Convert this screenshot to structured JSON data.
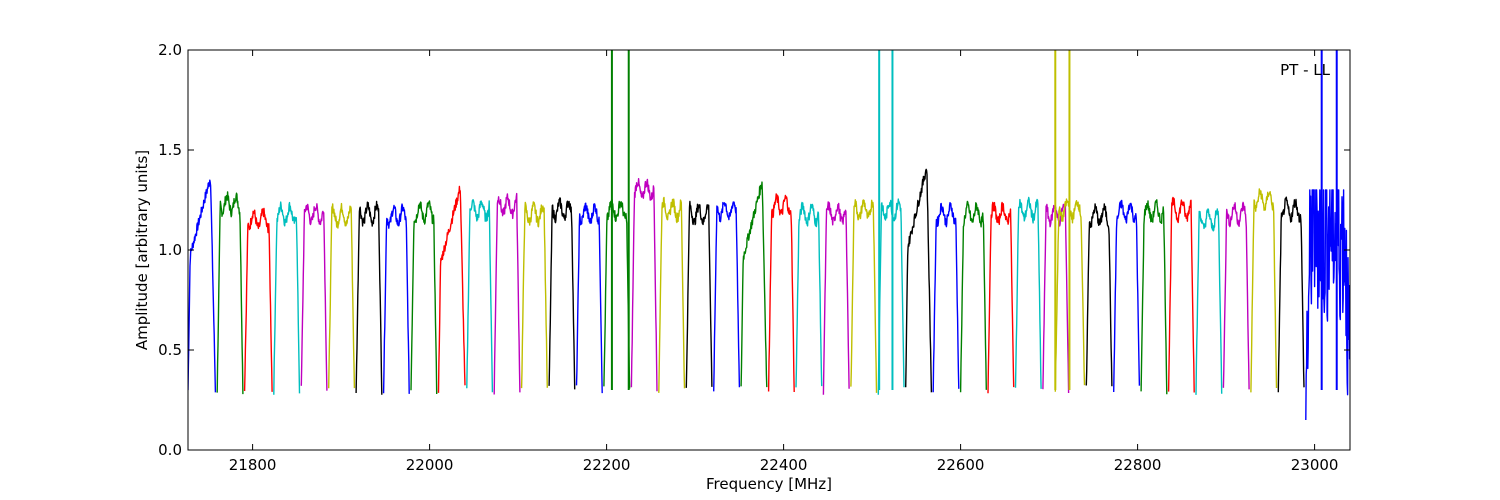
{
  "chart_data": {
    "type": "line",
    "title": "",
    "xlabel": "Frequency [MHz]",
    "ylabel": "Amplitude [arbitrary units]",
    "annotation": "PT - LL",
    "xlim": [
      21727,
      23040
    ],
    "ylim": [
      0.0,
      2.0
    ],
    "x_ticks": [
      21800,
      22000,
      22200,
      22400,
      22600,
      22800,
      23000
    ],
    "y_ticks": [
      0.0,
      0.5,
      1.0,
      1.5,
      2.0
    ],
    "x_tick_labels": [
      "21800",
      "22000",
      "22200",
      "22400",
      "22600",
      "22800",
      "23000"
    ],
    "y_tick_labels": [
      "0.0",
      "0.5",
      "1.0",
      "1.5",
      "2.0"
    ],
    "grid": false,
    "legend": "none",
    "palette": [
      "#0000ff",
      "#008000",
      "#ff0000",
      "#00bfbf",
      "#bf00bf",
      "#bfbf00",
      "#000000"
    ],
    "series": [
      {
        "x_start": 21727,
        "x_end": 21758,
        "level": 1.3,
        "color": "#0000ff",
        "style": "rising"
      },
      {
        "x_start": 21760,
        "x_end": 21789,
        "level": 1.23,
        "color": "#008000"
      },
      {
        "x_start": 21791,
        "x_end": 21822,
        "level": 1.15,
        "color": "#ff0000"
      },
      {
        "x_start": 21824,
        "x_end": 21853,
        "level": 1.18,
        "color": "#00bfbf"
      },
      {
        "x_start": 21855,
        "x_end": 21884,
        "level": 1.18,
        "color": "#bf00bf"
      },
      {
        "x_start": 21886,
        "x_end": 21915,
        "level": 1.17,
        "color": "#bfbf00"
      },
      {
        "x_start": 21917,
        "x_end": 21946,
        "level": 1.18,
        "color": "#000000"
      },
      {
        "x_start": 21948,
        "x_end": 21977,
        "level": 1.17,
        "color": "#0000ff"
      },
      {
        "x_start": 21979,
        "x_end": 22008,
        "level": 1.19,
        "color": "#008000"
      },
      {
        "x_start": 22010,
        "x_end": 22040,
        "level": 1.25,
        "color": "#ff0000",
        "style": "rising"
      },
      {
        "x_start": 22042,
        "x_end": 22071,
        "level": 1.2,
        "color": "#00bfbf"
      },
      {
        "x_start": 22073,
        "x_end": 22102,
        "level": 1.22,
        "color": "#bf00bf"
      },
      {
        "x_start": 22104,
        "x_end": 22133,
        "level": 1.18,
        "color": "#bfbf00"
      },
      {
        "x_start": 22135,
        "x_end": 22164,
        "level": 1.2,
        "color": "#000000"
      },
      {
        "x_start": 22166,
        "x_end": 22195,
        "level": 1.18,
        "color": "#0000ff"
      },
      {
        "x_start": 22197,
        "x_end": 22226,
        "level": 1.2,
        "color": "#008000",
        "spikes": [
          22206,
          22225
        ]
      },
      {
        "x_start": 22228,
        "x_end": 22257,
        "level": 1.3,
        "color": "#bf00bf"
      },
      {
        "x_start": 22259,
        "x_end": 22288,
        "level": 1.2,
        "color": "#bfbf00"
      },
      {
        "x_start": 22290,
        "x_end": 22319,
        "level": 1.18,
        "color": "#000000"
      },
      {
        "x_start": 22321,
        "x_end": 22350,
        "level": 1.2,
        "color": "#0000ff"
      },
      {
        "x_start": 22352,
        "x_end": 22381,
        "level": 1.28,
        "color": "#008000",
        "style": "rising"
      },
      {
        "x_start": 22383,
        "x_end": 22412,
        "level": 1.22,
        "color": "#ff0000"
      },
      {
        "x_start": 22414,
        "x_end": 22443,
        "level": 1.18,
        "color": "#00bfbf"
      },
      {
        "x_start": 22445,
        "x_end": 22474,
        "level": 1.18,
        "color": "#bf00bf"
      },
      {
        "x_start": 22476,
        "x_end": 22505,
        "level": 1.2,
        "color": "#bfbf00"
      },
      {
        "x_start": 22507,
        "x_end": 22536,
        "level": 1.2,
        "color": "#00bfbf",
        "spikes": [
          22508,
          22523
        ]
      },
      {
        "x_start": 22538,
        "x_end": 22567,
        "level": 1.35,
        "color": "#000000",
        "style": "rising"
      },
      {
        "x_start": 22569,
        "x_end": 22598,
        "level": 1.18,
        "color": "#0000ff"
      },
      {
        "x_start": 22600,
        "x_end": 22629,
        "level": 1.18,
        "color": "#008000"
      },
      {
        "x_start": 22631,
        "x_end": 22660,
        "level": 1.18,
        "color": "#ff0000"
      },
      {
        "x_start": 22662,
        "x_end": 22691,
        "level": 1.2,
        "color": "#00bfbf"
      },
      {
        "x_start": 22693,
        "x_end": 22722,
        "level": 1.18,
        "color": "#bf00bf"
      },
      {
        "x_start": 22707,
        "x_end": 22740,
        "level": 1.2,
        "color": "#bfbf00",
        "spikes": [
          22707,
          22723
        ]
      },
      {
        "x_start": 22742,
        "x_end": 22771,
        "level": 1.17,
        "color": "#000000"
      },
      {
        "x_start": 22773,
        "x_end": 22802,
        "level": 1.19,
        "color": "#0000ff"
      },
      {
        "x_start": 22804,
        "x_end": 22833,
        "level": 1.19,
        "color": "#008000"
      },
      {
        "x_start": 22835,
        "x_end": 22864,
        "level": 1.2,
        "color": "#ff0000"
      },
      {
        "x_start": 22866,
        "x_end": 22895,
        "level": 1.15,
        "color": "#00bfbf"
      },
      {
        "x_start": 22897,
        "x_end": 22926,
        "level": 1.18,
        "color": "#bf00bf"
      },
      {
        "x_start": 22928,
        "x_end": 22957,
        "level": 1.25,
        "color": "#bfbf00"
      },
      {
        "x_start": 22959,
        "x_end": 22988,
        "level": 1.2,
        "color": "#000000"
      },
      {
        "x_start": 22990,
        "x_end": 23040,
        "level": 1.1,
        "color": "#0000ff",
        "style": "noisy",
        "spikes": [
          23008,
          23025
        ]
      }
    ]
  }
}
